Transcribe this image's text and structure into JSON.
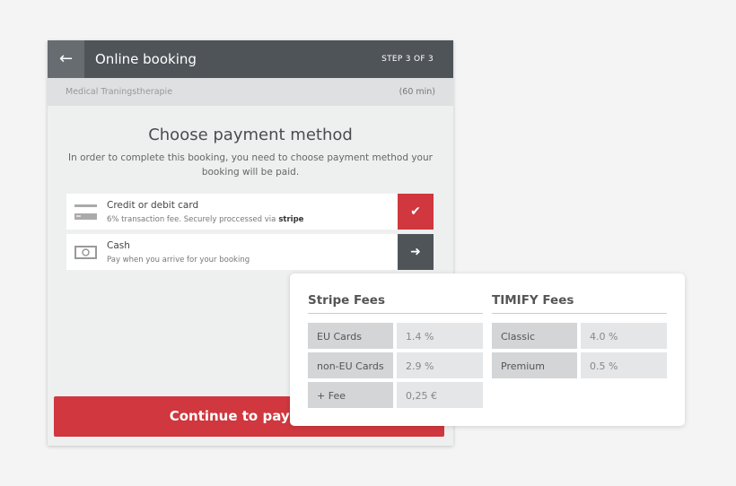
{
  "header": {
    "back_icon": "arrow-left-icon",
    "title": "Online booking",
    "step": "STEP 3 OF 3"
  },
  "service": {
    "name": "Medical Traningstherapie",
    "duration": "(60 min)"
  },
  "main": {
    "title": "Choose payment method",
    "description": "In order to complete this booking, you need to choose payment method your booking will be paid.",
    "options": [
      {
        "name": "Credit or debit card",
        "description": "6% transaction fee. Securely proccessed via",
        "brand": "stripe",
        "icon": "credit-card-icon",
        "action_icon": "checkmark-icon",
        "selected": true
      },
      {
        "name": "Cash",
        "description": "Pay when you arrive for your booking",
        "icon": "cash-icon",
        "action_icon": "arrow-right-icon",
        "selected": false
      }
    ],
    "continue_label": "Continue to payment"
  },
  "colors": {
    "header": "#4f5459",
    "accent": "#d0373e"
  },
  "fees": {
    "stripe": {
      "title": "Stripe Fees",
      "rows": [
        {
          "label": "EU Cards",
          "value": "1.4 %"
        },
        {
          "label": "non-EU Cards",
          "value": "2.9 %"
        },
        {
          "label": "+ Fee",
          "value": "0,25 €"
        }
      ]
    },
    "timify": {
      "title": "TIMIFY Fees",
      "rows": [
        {
          "label": "Classic",
          "value": "4.0 %"
        },
        {
          "label": "Premium",
          "value": "0.5 %"
        }
      ]
    }
  }
}
